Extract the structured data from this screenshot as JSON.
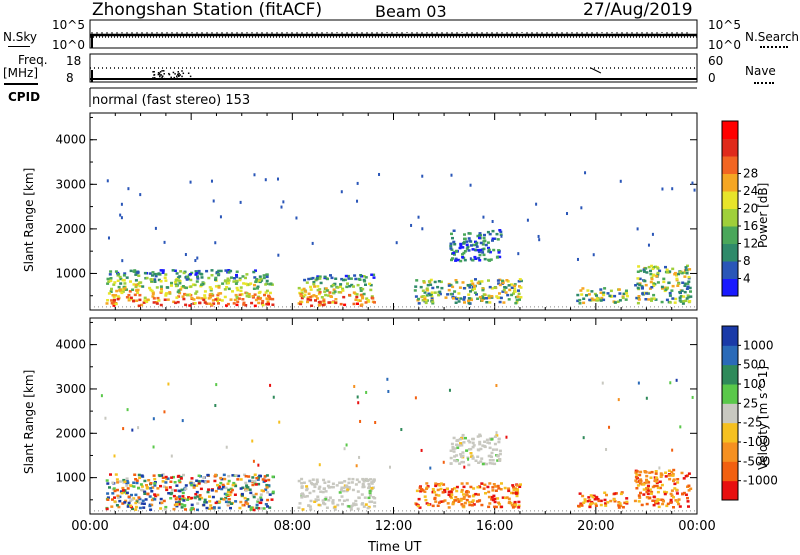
{
  "header": {
    "station": "Zhongshan Station (fitACF)",
    "beam": "Beam 03",
    "date": "27/Aug/2019"
  },
  "top_panels": {
    "nsky_label": "N.Sky",
    "nsky_ticks": [
      "10^5",
      "10^0"
    ],
    "nsearch_label": "N.Search",
    "nsearch_ticks": [
      "10^5",
      "10^0"
    ],
    "freq_label": "Freq.",
    "freq_unit": "[MHz]",
    "freq_ticks": [
      "18",
      "8"
    ],
    "nave_label": "Nave",
    "nave_ticks": [
      "60",
      "0"
    ],
    "cpid_label": "CPID",
    "cpid_text": "normal (fast stereo) 153"
  },
  "chart_data": [
    {
      "type": "heatmap",
      "name": "power-panel",
      "ylabel": "Slant Range [km]",
      "xlabel": "",
      "yticks": [
        "1000",
        "2000",
        "3000",
        "4000"
      ],
      "ylim": [
        180,
        4600
      ],
      "xlim_hours": [
        0,
        24
      ],
      "colorbar_label": "Power [dB]",
      "colorbar_ticks": [
        "4",
        "8",
        "12",
        "16",
        "20",
        "24",
        "28"
      ],
      "colors": [
        "#1a1aff",
        "#2a56b8",
        "#2f8a6a",
        "#4aa75a",
        "#9fcf3a",
        "#e8e52a",
        "#f5a623",
        "#f26522",
        "#e02a1b",
        "#ff0000"
      ],
      "echo_regions": [
        {
          "t": [
            0.6,
            7.2
          ],
          "r": [
            300,
            1100
          ],
          "level": "high"
        },
        {
          "t": [
            8.2,
            11.2
          ],
          "r": [
            300,
            1000
          ],
          "level": "high"
        },
        {
          "t": [
            12.8,
            17.0
          ],
          "r": [
            350,
            900
          ],
          "level": "mid"
        },
        {
          "t": [
            14.2,
            16.2
          ],
          "r": [
            1300,
            2000
          ],
          "level": "low"
        },
        {
          "t": [
            19.2,
            21.2
          ],
          "r": [
            350,
            700
          ],
          "level": "mid"
        },
        {
          "t": [
            21.5,
            23.7
          ],
          "r": [
            350,
            1200
          ],
          "level": "mid"
        }
      ]
    },
    {
      "type": "heatmap",
      "name": "velocity-panel",
      "ylabel": "Slant Range [km]",
      "xlabel": "Time UT",
      "yticks": [
        "1000",
        "2000",
        "3000",
        "4000"
      ],
      "ylim": [
        180,
        4600
      ],
      "xticks": [
        "00:00",
        "04:00",
        "08:00",
        "12:00",
        "16:00",
        "20:00",
        "00:00"
      ],
      "xlim_hours": [
        0,
        24
      ],
      "colorbar_label": "Velocity [m s^-1]",
      "colorbar_ticks": [
        "1000",
        "500",
        "100",
        "25",
        "-25",
        "-100",
        "-500",
        "-1000"
      ],
      "colors": [
        "#1a3aa8",
        "#2a6ab8",
        "#2f8a5a",
        "#5ac84a",
        "#c8c8c0",
        "#f5c020",
        "#f59020",
        "#f26010",
        "#e81010"
      ],
      "echo_regions": [
        {
          "t": [
            0.6,
            7.2
          ],
          "r": [
            300,
            1100
          ],
          "level": "mixed"
        },
        {
          "t": [
            8.2,
            11.2
          ],
          "r": [
            300,
            1000
          ],
          "level": "gray"
        },
        {
          "t": [
            12.8,
            17.0
          ],
          "r": [
            350,
            900
          ],
          "level": "orange"
        },
        {
          "t": [
            14.2,
            16.2
          ],
          "r": [
            1300,
            2000
          ],
          "level": "gray"
        },
        {
          "t": [
            19.2,
            21.2
          ],
          "r": [
            350,
            700
          ],
          "level": "orange"
        },
        {
          "t": [
            21.5,
            23.7
          ],
          "r": [
            350,
            1200
          ],
          "level": "orange"
        }
      ]
    }
  ]
}
